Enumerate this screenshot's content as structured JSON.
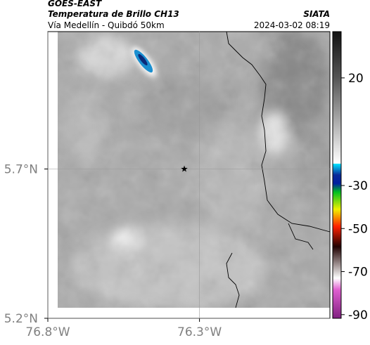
{
  "header": {
    "source": "GOES-EAST",
    "title": "Temperatura de Brillo CH13",
    "subtitle": "Vía Medellín - Quibdó 50km",
    "org": "SIATA",
    "datetime": "2024-03-02 08:19"
  },
  "map": {
    "xlim": [
      -76.8,
      -75.87
    ],
    "ylim": [
      5.2,
      6.16
    ],
    "xticks": [
      {
        "value": -76.8,
        "label": "76.8°W"
      },
      {
        "value": -76.3,
        "label": "76.3°W"
      }
    ],
    "yticks": [
      {
        "value": 5.2,
        "label": "5.2°N"
      },
      {
        "value": 5.7,
        "label": "5.7°N"
      }
    ],
    "grid": true,
    "marker": {
      "lon": -76.35,
      "lat": 5.7
    }
  },
  "colorbar": {
    "clim": [
      -91.7,
      41.5
    ],
    "ticks": [
      20,
      -30,
      -50,
      -70,
      -90
    ]
  }
}
